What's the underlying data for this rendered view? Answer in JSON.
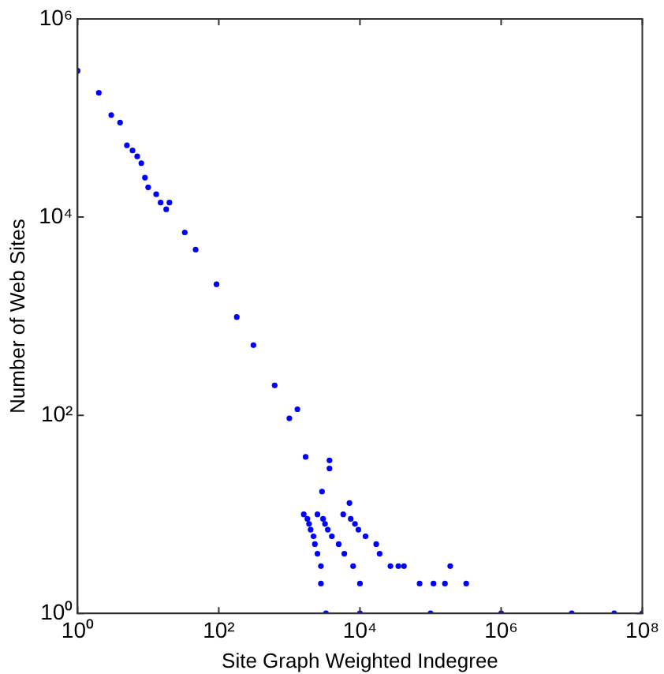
{
  "chart_data": {
    "type": "scatter",
    "xlabel": "Site Graph Weighted Indegree",
    "ylabel": "Number of Web Sites",
    "log": "xy",
    "grid": false,
    "legend": false,
    "marker": "circle",
    "xlim": [
      1,
      100000000
    ],
    "ylim": [
      1,
      1000000
    ],
    "xticks": [
      {
        "value": 1,
        "label": "10⁰"
      },
      {
        "value": 100,
        "label": "10²"
      },
      {
        "value": 10000,
        "label": "10⁴"
      },
      {
        "value": 1000000,
        "label": "10⁶"
      },
      {
        "value": 100000000,
        "label": "10⁸"
      }
    ],
    "yticks": [
      {
        "value": 1,
        "label": "10⁰"
      },
      {
        "value": 100,
        "label": "10²"
      },
      {
        "value": 10000,
        "label": "10⁴"
      },
      {
        "value": 1000000,
        "label": "10⁶"
      }
    ],
    "series": [
      {
        "color": "#0000ff",
        "x": [
          1,
          2,
          3,
          4,
          5,
          6,
          7,
          8,
          9,
          10,
          13,
          15,
          18,
          20,
          33,
          47,
          93,
          180,
          310,
          620,
          1000,
          1300,
          1700,
          2900,
          3700,
          3700,
          7100,
          1600,
          2500,
          5800,
          1800,
          3000,
          7400,
          1900,
          3200,
          8500,
          2000,
          3500,
          9500,
          2200,
          4000,
          12000,
          2300,
          5000,
          17000,
          2500,
          6000,
          19000,
          2800,
          8000,
          27000,
          35000,
          42000,
          190000,
          2800,
          10000,
          70000,
          110000,
          160000,
          320000,
          3300,
          10000,
          100000,
          1000000,
          10000000,
          40000000,
          100000000
        ],
        "values": [
          300000,
          180000,
          107000,
          90000,
          53000,
          47000,
          41000,
          35000,
          25000,
          20000,
          17000,
          14000,
          12000,
          14000,
          7000,
          4700,
          2100,
          980,
          510,
          200,
          93,
          115,
          38,
          17,
          29,
          35,
          13,
          10,
          10,
          10,
          9,
          9,
          9,
          8,
          8,
          8,
          7,
          7,
          7,
          6,
          6,
          6,
          5,
          5,
          5,
          4,
          4,
          4,
          3,
          3,
          3,
          3,
          3,
          3,
          2,
          2,
          2,
          2,
          2,
          2,
          1,
          1,
          1,
          1,
          1,
          1,
          1
        ]
      }
    ]
  }
}
